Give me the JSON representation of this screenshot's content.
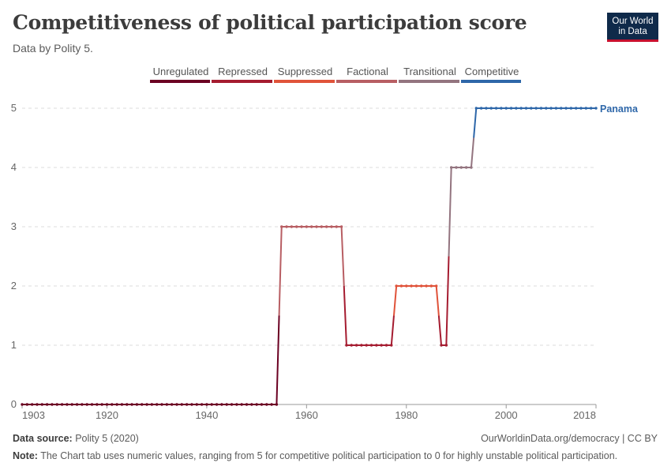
{
  "header": {
    "title": "Competitiveness of political participation score",
    "subtitle": "Data by Polity 5.",
    "logo_line1": "Our World",
    "logo_line2": "in Data"
  },
  "footer": {
    "source_label": "Data source:",
    "source_value": "Polity 5 (2020)",
    "right": "OurWorldinData.org/democracy | CC BY",
    "note_label": "Note:",
    "note_value": "The Chart tab uses numeric values, ranging from 5 for competitive political participation to 0 for highly unstable political participation."
  },
  "chart_data": {
    "type": "line",
    "title": "Competitiveness of political participation score",
    "xlabel": "",
    "ylabel": "",
    "xlim": [
      1903,
      2018
    ],
    "ylim": [
      0,
      5
    ],
    "x_ticks": [
      1903,
      1920,
      1940,
      1960,
      1980,
      2000,
      2018
    ],
    "y_ticks": [
      0,
      1,
      2,
      3,
      4,
      5
    ],
    "grid": "horizontal dashed",
    "legend": {
      "placement": "top",
      "entries": [
        {
          "label": "Unregulated",
          "value": 0,
          "color": "#6b0022"
        },
        {
          "label": "Repressed",
          "value": 1,
          "color": "#a51c30"
        },
        {
          "label": "Suppressed",
          "value": 2,
          "color": "#e0533a"
        },
        {
          "label": "Factional",
          "value": 3,
          "color": "#b85e63"
        },
        {
          "label": "Transitional",
          "value": 4,
          "color": "#93747f"
        },
        {
          "label": "Competitive",
          "value": 5,
          "color": "#2e67a9"
        }
      ]
    },
    "series": [
      {
        "name": "Panama",
        "segments": [
          {
            "from": 1903,
            "to": 1954,
            "value": 0
          },
          {
            "from": 1955,
            "to": 1967,
            "value": 3
          },
          {
            "from": 1968,
            "to": 1977,
            "value": 1
          },
          {
            "from": 1978,
            "to": 1986,
            "value": 2
          },
          {
            "from": 1987,
            "to": 1988,
            "value": 1
          },
          {
            "from": 1989,
            "to": 1993,
            "value": 4
          },
          {
            "from": 1994,
            "to": 2018,
            "value": 5
          }
        ]
      }
    ]
  }
}
